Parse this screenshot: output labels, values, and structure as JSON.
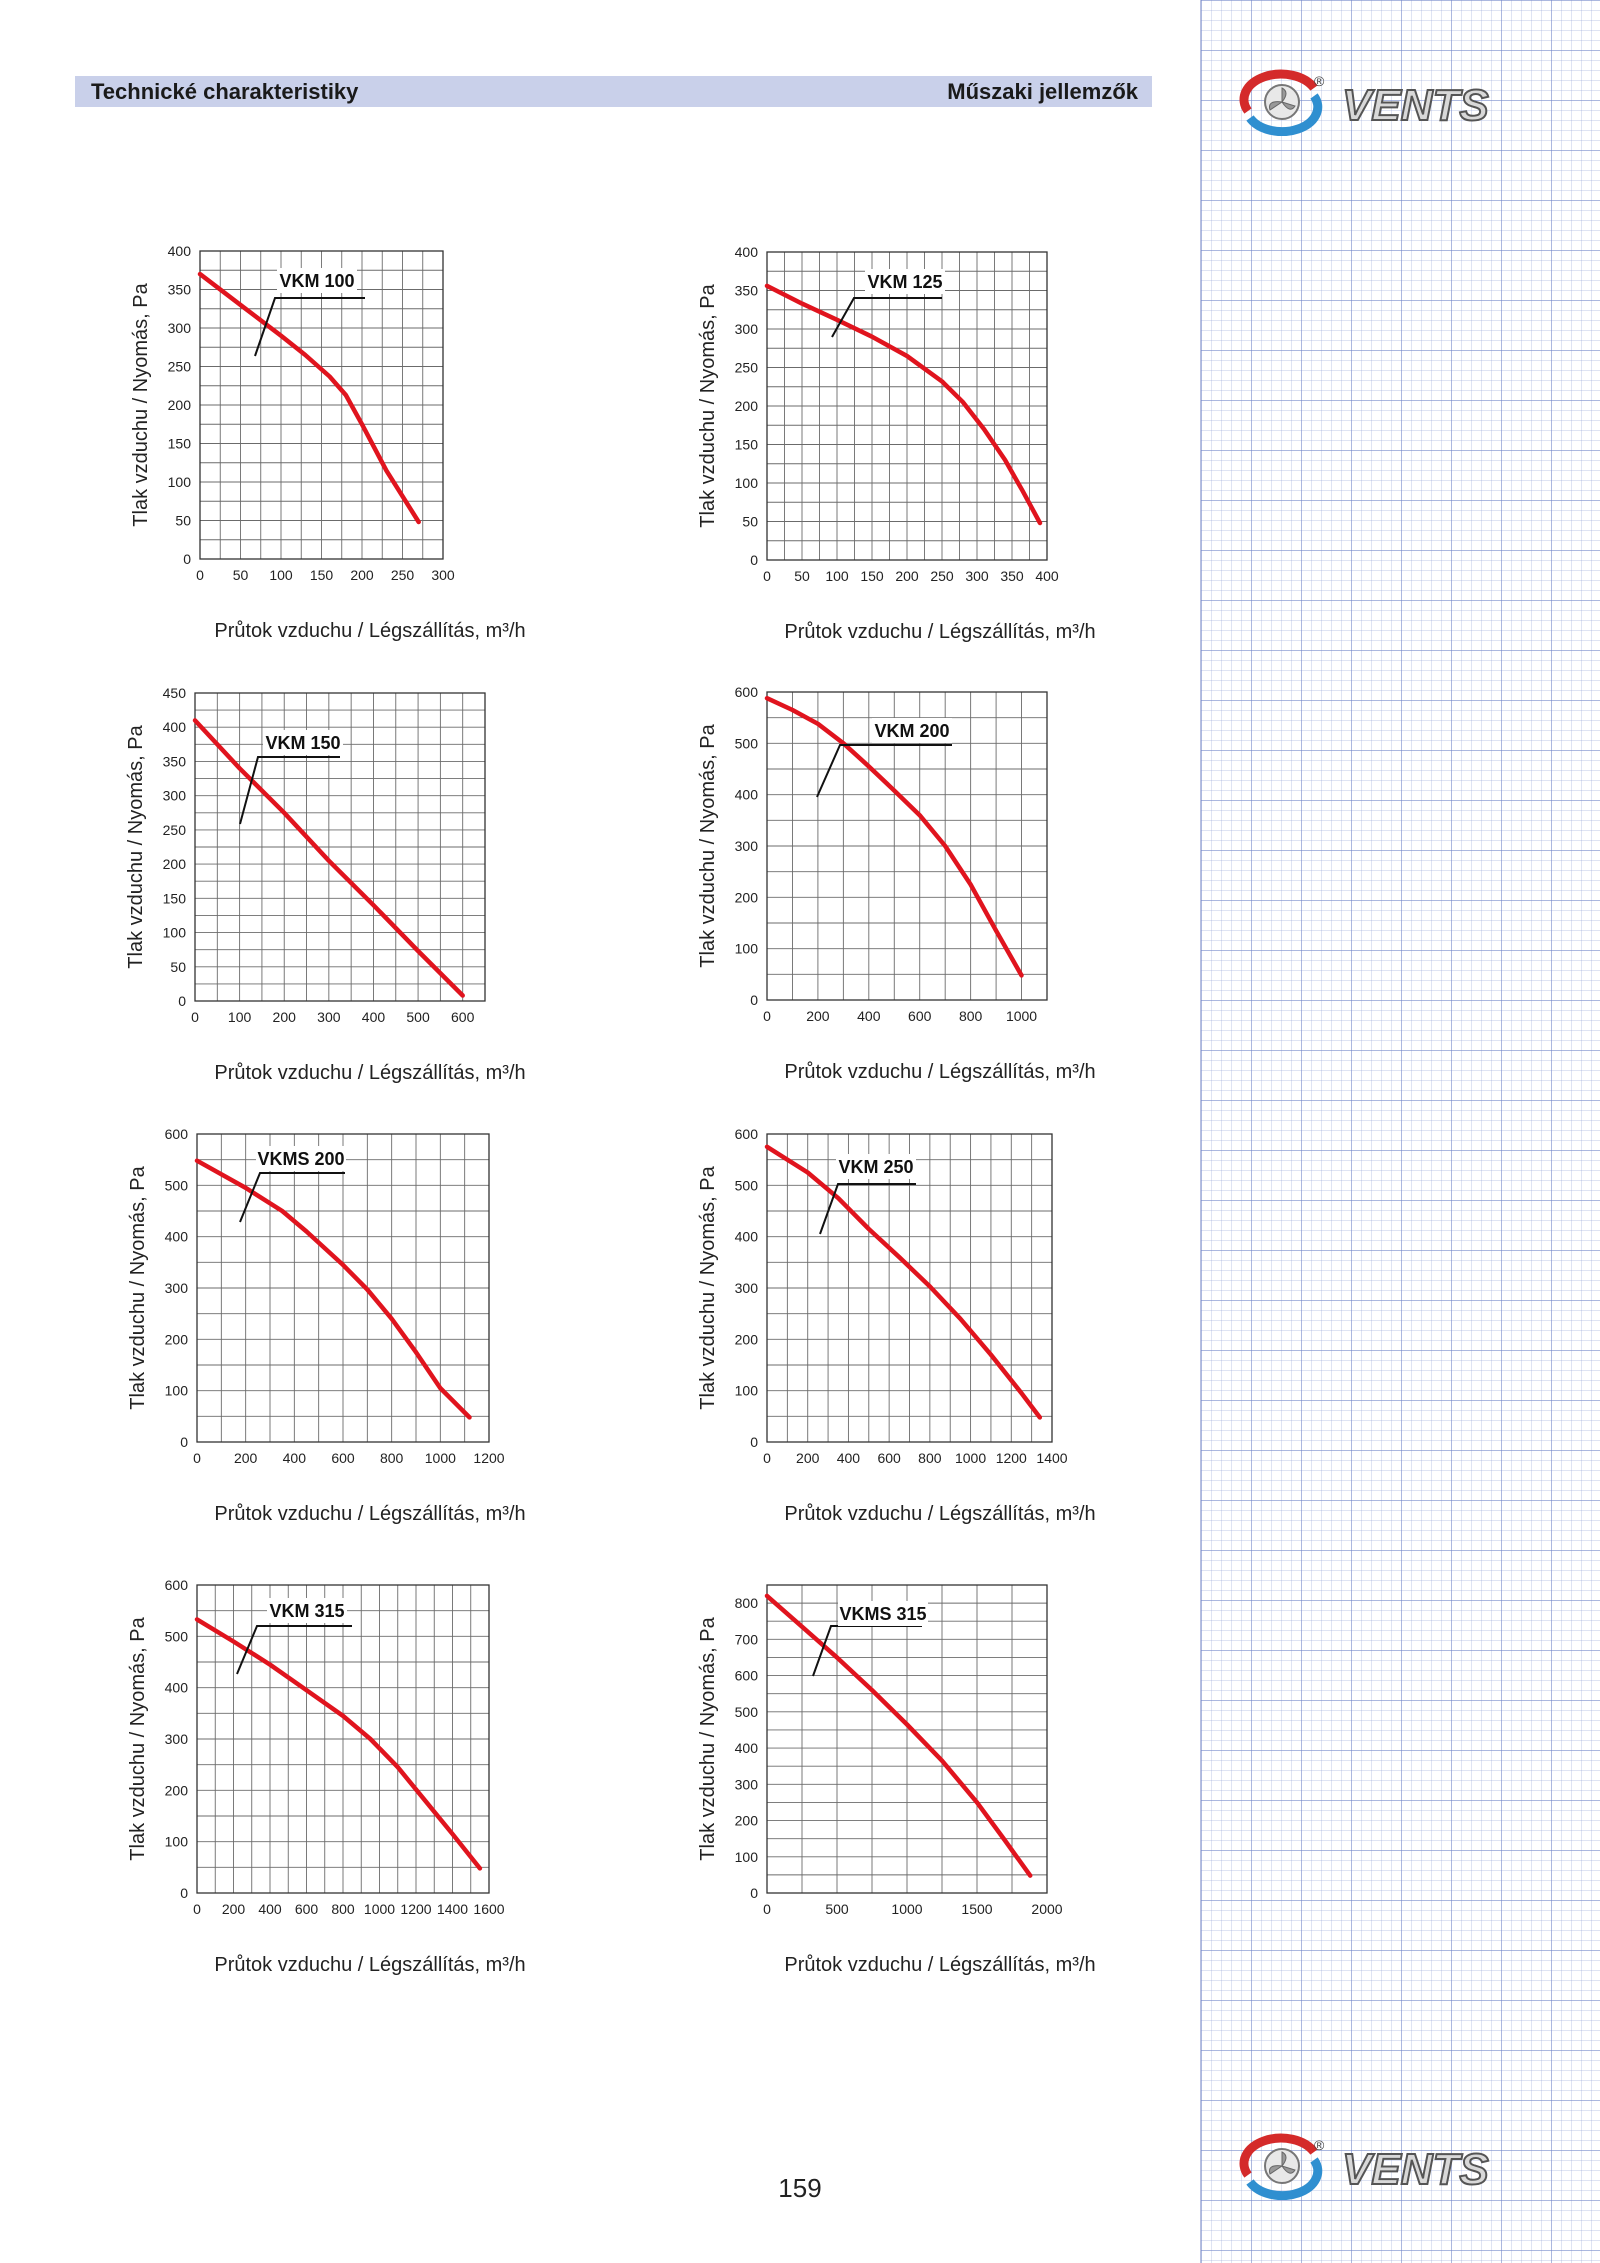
{
  "header": {
    "left": "Technické charakteristiky",
    "right": "Műszaki jellemzők"
  },
  "brand": {
    "logo_text": "VENTS",
    "registered": "®"
  },
  "page_number": "159",
  "colors": {
    "curve": "#e0141e",
    "header_bg": "#c9d0ea",
    "grid": "#555555"
  },
  "chart_data": [
    {
      "type": "line",
      "model": "VKM 100",
      "xlabel": "Průtok vzduchu / Légszállítás, m³/h",
      "ylabel": "Tlak vzduchu / Nyomás, Pa",
      "xlim": [
        0,
        300
      ],
      "ylim": [
        0,
        400
      ],
      "xticks": [
        0,
        50,
        100,
        150,
        200,
        250,
        300
      ],
      "yticks": [
        0,
        50,
        100,
        150,
        200,
        250,
        300,
        350,
        400
      ],
      "x": [
        0,
        50,
        100,
        130,
        160,
        180,
        200,
        230,
        270
      ],
      "y": [
        370,
        330,
        290,
        265,
        237,
        213,
        175,
        115,
        48
      ]
    },
    {
      "type": "line",
      "model": "VKM 125",
      "xlabel": "Průtok vzduchu / Légszállítás, m³/h",
      "ylabel": "Tlak vzduchu / Nyomás, Pa",
      "xlim": [
        0,
        400
      ],
      "ylim": [
        0,
        400
      ],
      "xticks": [
        0,
        50,
        100,
        150,
        200,
        250,
        300,
        350,
        400
      ],
      "yticks": [
        0,
        50,
        100,
        150,
        200,
        250,
        300,
        350,
        400
      ],
      "x": [
        0,
        50,
        100,
        150,
        200,
        250,
        280,
        310,
        340,
        365,
        390
      ],
      "y": [
        356,
        333,
        312,
        290,
        265,
        232,
        205,
        170,
        130,
        90,
        48
      ]
    },
    {
      "type": "line",
      "model": "VKM 150",
      "xlabel": "Průtok vzduchu / Légszállítás, m³/h",
      "ylabel": "Tlak vzduchu / Nyomás, Pa",
      "xlim": [
        0,
        650
      ],
      "ylim": [
        0,
        450
      ],
      "xticks": [
        0,
        100,
        200,
        300,
        400,
        500,
        600
      ],
      "yticks": [
        0,
        50,
        100,
        150,
        200,
        250,
        300,
        350,
        400,
        450
      ],
      "x": [
        0,
        100,
        200,
        300,
        400,
        500,
        600
      ],
      "y": [
        410,
        340,
        275,
        205,
        140,
        73,
        8
      ]
    },
    {
      "type": "line",
      "model": "VKM 200",
      "xlabel": "Průtok vzduchu / Légszállítás, m³/h",
      "ylabel": "Tlak vzduchu / Nyomás, Pa",
      "xlim": [
        0,
        1100
      ],
      "ylim": [
        0,
        600
      ],
      "xticks": [
        0,
        200,
        400,
        600,
        800,
        1000
      ],
      "yticks": [
        0,
        100,
        200,
        300,
        400,
        500,
        600
      ],
      "x": [
        0,
        100,
        200,
        300,
        400,
        500,
        600,
        700,
        800,
        900,
        1000
      ],
      "y": [
        588,
        565,
        538,
        500,
        455,
        408,
        360,
        300,
        225,
        135,
        48
      ]
    },
    {
      "type": "line",
      "model": "VKMS 200",
      "xlabel": "Průtok vzduchu / Légszállítás, m³/h",
      "ylabel": "Tlak vzduchu / Nyomás, Pa",
      "xlim": [
        0,
        1200
      ],
      "ylim": [
        0,
        600
      ],
      "xticks": [
        0,
        200,
        400,
        600,
        800,
        1000,
        1200
      ],
      "yticks": [
        0,
        100,
        200,
        300,
        400,
        500,
        600
      ],
      "x": [
        0,
        200,
        350,
        450,
        600,
        700,
        800,
        900,
        1000,
        1120
      ],
      "y": [
        548,
        495,
        450,
        410,
        345,
        297,
        240,
        175,
        105,
        48
      ]
    },
    {
      "type": "line",
      "model": "VKM 250",
      "xlabel": "Průtok vzduchu / Légszállítás, m³/h",
      "ylabel": "Tlak vzduchu / Nyomás, Pa",
      "xlim": [
        0,
        1400
      ],
      "ylim": [
        0,
        600
      ],
      "xticks": [
        0,
        200,
        400,
        600,
        800,
        1000,
        1200,
        1400
      ],
      "yticks": [
        0,
        100,
        200,
        300,
        400,
        500,
        600
      ],
      "x": [
        0,
        200,
        350,
        500,
        650,
        800,
        950,
        1100,
        1250,
        1340
      ],
      "y": [
        575,
        525,
        475,
        415,
        360,
        303,
        240,
        170,
        95,
        48
      ]
    },
    {
      "type": "line",
      "model": "VKM 315",
      "xlabel": "Průtok vzduchu / Légszállítás, m³/h",
      "ylabel": "Tlak vzduchu / Nyomás, Pa",
      "xlim": [
        0,
        1600
      ],
      "ylim": [
        0,
        600
      ],
      "xticks": [
        0,
        200,
        400,
        600,
        800,
        1000,
        1200,
        1400,
        1600
      ],
      "yticks": [
        0,
        100,
        200,
        300,
        400,
        500,
        600
      ],
      "x": [
        0,
        200,
        400,
        600,
        800,
        950,
        1100,
        1250,
        1400,
        1550
      ],
      "y": [
        533,
        490,
        445,
        395,
        345,
        300,
        245,
        180,
        115,
        48
      ]
    },
    {
      "type": "line",
      "model": "VKMS 315",
      "xlabel": "Průtok vzduchu / Légszállítás, m³/h",
      "ylabel": "Tlak vzduchu / Nyomás, Pa",
      "xlim": [
        0,
        2000
      ],
      "ylim": [
        0,
        850
      ],
      "xticks": [
        0,
        500,
        1000,
        1500,
        2000
      ],
      "yticks": [
        0,
        100,
        200,
        300,
        400,
        500,
        600,
        700,
        800
      ],
      "x": [
        0,
        250,
        500,
        750,
        1000,
        1250,
        1500,
        1700,
        1880
      ],
      "y": [
        820,
        735,
        650,
        560,
        465,
        365,
        250,
        145,
        48
      ]
    }
  ]
}
